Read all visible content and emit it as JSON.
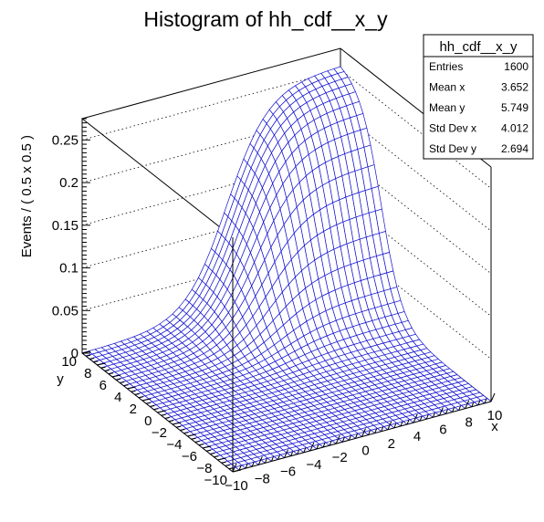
{
  "chart_data": {
    "type": "surface",
    "title": "Histogram of hh_cdf__x_y",
    "xlabel": "x",
    "ylabel": "y",
    "zlabel": "Events / ( 0.5 x 0.5 )",
    "xlim": [
      -10,
      10
    ],
    "ylim": [
      -10,
      10
    ],
    "zlim": [
      0,
      0.275
    ],
    "bins": 40,
    "x_ticks": [
      "−10",
      "−8",
      "−6",
      "−4",
      "−2",
      "0",
      "2",
      "4",
      "6",
      "8",
      "10"
    ],
    "y_ticks": [
      "−10",
      "−8",
      "−6",
      "−4",
      "−2",
      "0",
      "2",
      "4",
      "6",
      "8",
      "10"
    ],
    "z_ticks": [
      "0",
      "0.05",
      "0.1",
      "0.15",
      "0.2",
      "0.25"
    ],
    "z_tick_values": [
      0,
      0.05,
      0.1,
      0.15,
      0.2,
      0.25
    ],
    "surface_model": {
      "description": "product of logistic CDFs, peak near (x=10, y=10)",
      "amplitude": 0.26,
      "x_center": 1.2,
      "x_scale": 1.6,
      "y_center": 4.6,
      "y_scale": 1.4
    },
    "mesh_color": "#1010d0",
    "grid": "dotted"
  },
  "stats": {
    "name": "hh_cdf__x_y",
    "rows": [
      {
        "label": "Entries",
        "value": "1600"
      },
      {
        "label": "Mean x",
        "value": "3.652"
      },
      {
        "label": "Mean y",
        "value": "5.749"
      },
      {
        "label": "Std Dev x",
        "value": "4.012"
      },
      {
        "label": "Std Dev y",
        "value": "2.694"
      }
    ]
  }
}
